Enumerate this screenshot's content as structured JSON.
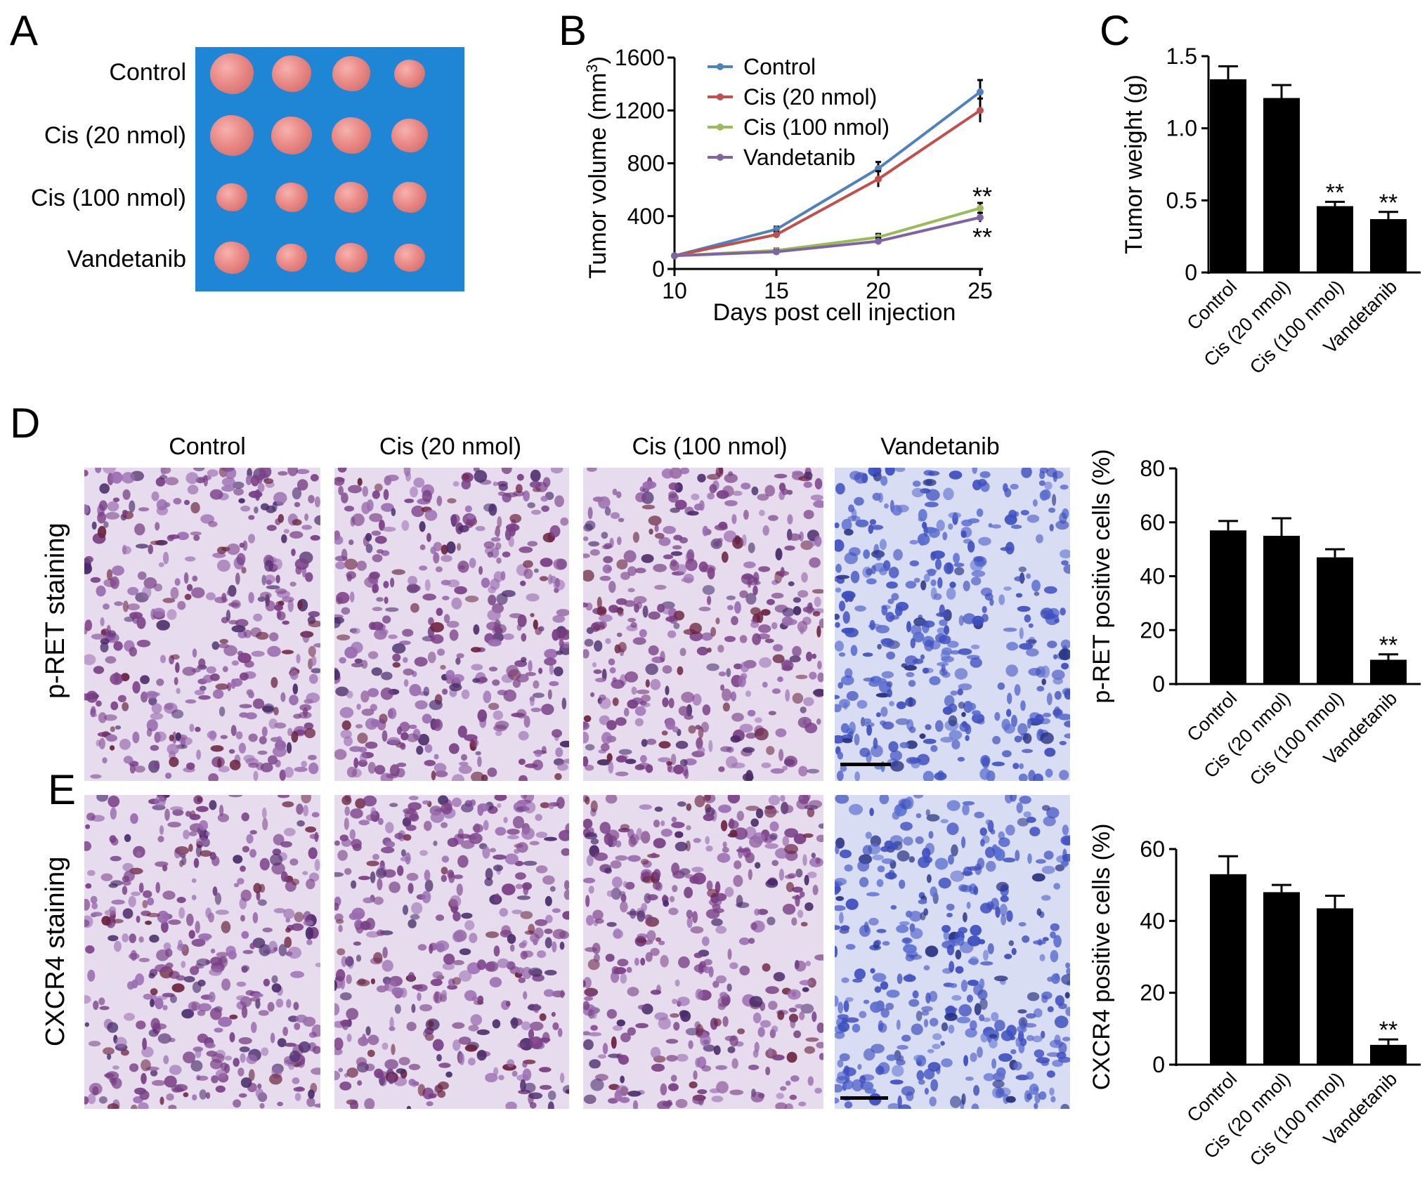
{
  "panels": {
    "a": "A",
    "b": "B",
    "c": "C",
    "d": "D",
    "e": "E"
  },
  "groups": [
    "Control",
    "Cis (20 nmol)",
    "Cis (100 nmol)",
    "Vandetanib"
  ],
  "staining_rows": [
    "p-RET staining",
    "CXCR4 staining"
  ],
  "colors": {
    "photo_background": "#1f86d6",
    "tumor": "#e98884",
    "stain_brown_purple": "#7a3f86",
    "stain_blue": "#3d4fbf",
    "bar": "#000000"
  },
  "chart_data": [
    {
      "panel": "B",
      "type": "line",
      "xlabel": "Days post cell injection",
      "ylabel": "Tumor volume (mm3)",
      "ylabel_main": "Tumor volume (mm",
      "ylabel_sup": "3",
      "ylabel_end": ")",
      "xlim": [
        10,
        25
      ],
      "ylim": [
        0,
        1600
      ],
      "xticks": [
        10,
        15,
        20,
        25
      ],
      "yticks": [
        0,
        400,
        800,
        1200,
        1600
      ],
      "x": [
        10,
        15,
        20,
        25
      ],
      "legend_position": "top-left",
      "series": [
        {
          "name": "Control",
          "color": "#4f81bd",
          "values": [
            100,
            300,
            760,
            1340
          ],
          "errors": [
            0,
            20,
            50,
            90
          ]
        },
        {
          "name": "Cis (20 nmol)",
          "color": "#c0504d",
          "values": [
            100,
            260,
            680,
            1200
          ],
          "errors": [
            0,
            20,
            60,
            90
          ]
        },
        {
          "name": "Cis (100 nmol)",
          "color": "#9bbb59",
          "values": [
            100,
            140,
            240,
            460
          ],
          "errors": [
            0,
            15,
            25,
            40
          ]
        },
        {
          "name": "Vandetanib",
          "color": "#8064a2",
          "values": [
            100,
            130,
            210,
            390
          ],
          "errors": [
            0,
            15,
            25,
            35
          ]
        }
      ],
      "annotations": [
        "**",
        "**"
      ]
    },
    {
      "panel": "C",
      "type": "bar",
      "ylabel": "Tumor weight (g)",
      "ylim": [
        0,
        1.5
      ],
      "yticks": [
        "0",
        "0.5",
        "1.0",
        "1.5"
      ],
      "categories": [
        "Control",
        "Cis (20 nmol)",
        "Cis (100 nmol)",
        "Vandetanib"
      ],
      "values": [
        1.34,
        1.21,
        0.46,
        0.37
      ],
      "errors": [
        0.09,
        0.09,
        0.03,
        0.05
      ],
      "annotations": [
        "",
        "",
        "**",
        "**"
      ]
    },
    {
      "panel": "D",
      "type": "bar",
      "ylabel": "p-RET positive cells (%)",
      "ylim": [
        0,
        80
      ],
      "yticks": [
        "0",
        "20",
        "40",
        "60",
        "80"
      ],
      "categories": [
        "Control",
        "Cis (20 nmol)",
        "Cis (100 nmol)",
        "Vandetanib"
      ],
      "values": [
        57,
        55,
        47,
        9
      ],
      "errors": [
        3.5,
        6.5,
        3,
        2
      ],
      "annotations": [
        "",
        "",
        "",
        "**"
      ]
    },
    {
      "panel": "E",
      "type": "bar",
      "ylabel": "CXCR4 positive cells (%)",
      "ylim": [
        0,
        60
      ],
      "yticks": [
        "0",
        "20",
        "40",
        "60"
      ],
      "categories": [
        "Control",
        "Cis (20 nmol)",
        "Cis (100 nmol)",
        "Vandetanib"
      ],
      "values": [
        53,
        48,
        43.5,
        5.5
      ],
      "errors": [
        5,
        2,
        3.5,
        1.5
      ],
      "annotations": [
        "",
        "",
        "",
        "**"
      ]
    }
  ]
}
